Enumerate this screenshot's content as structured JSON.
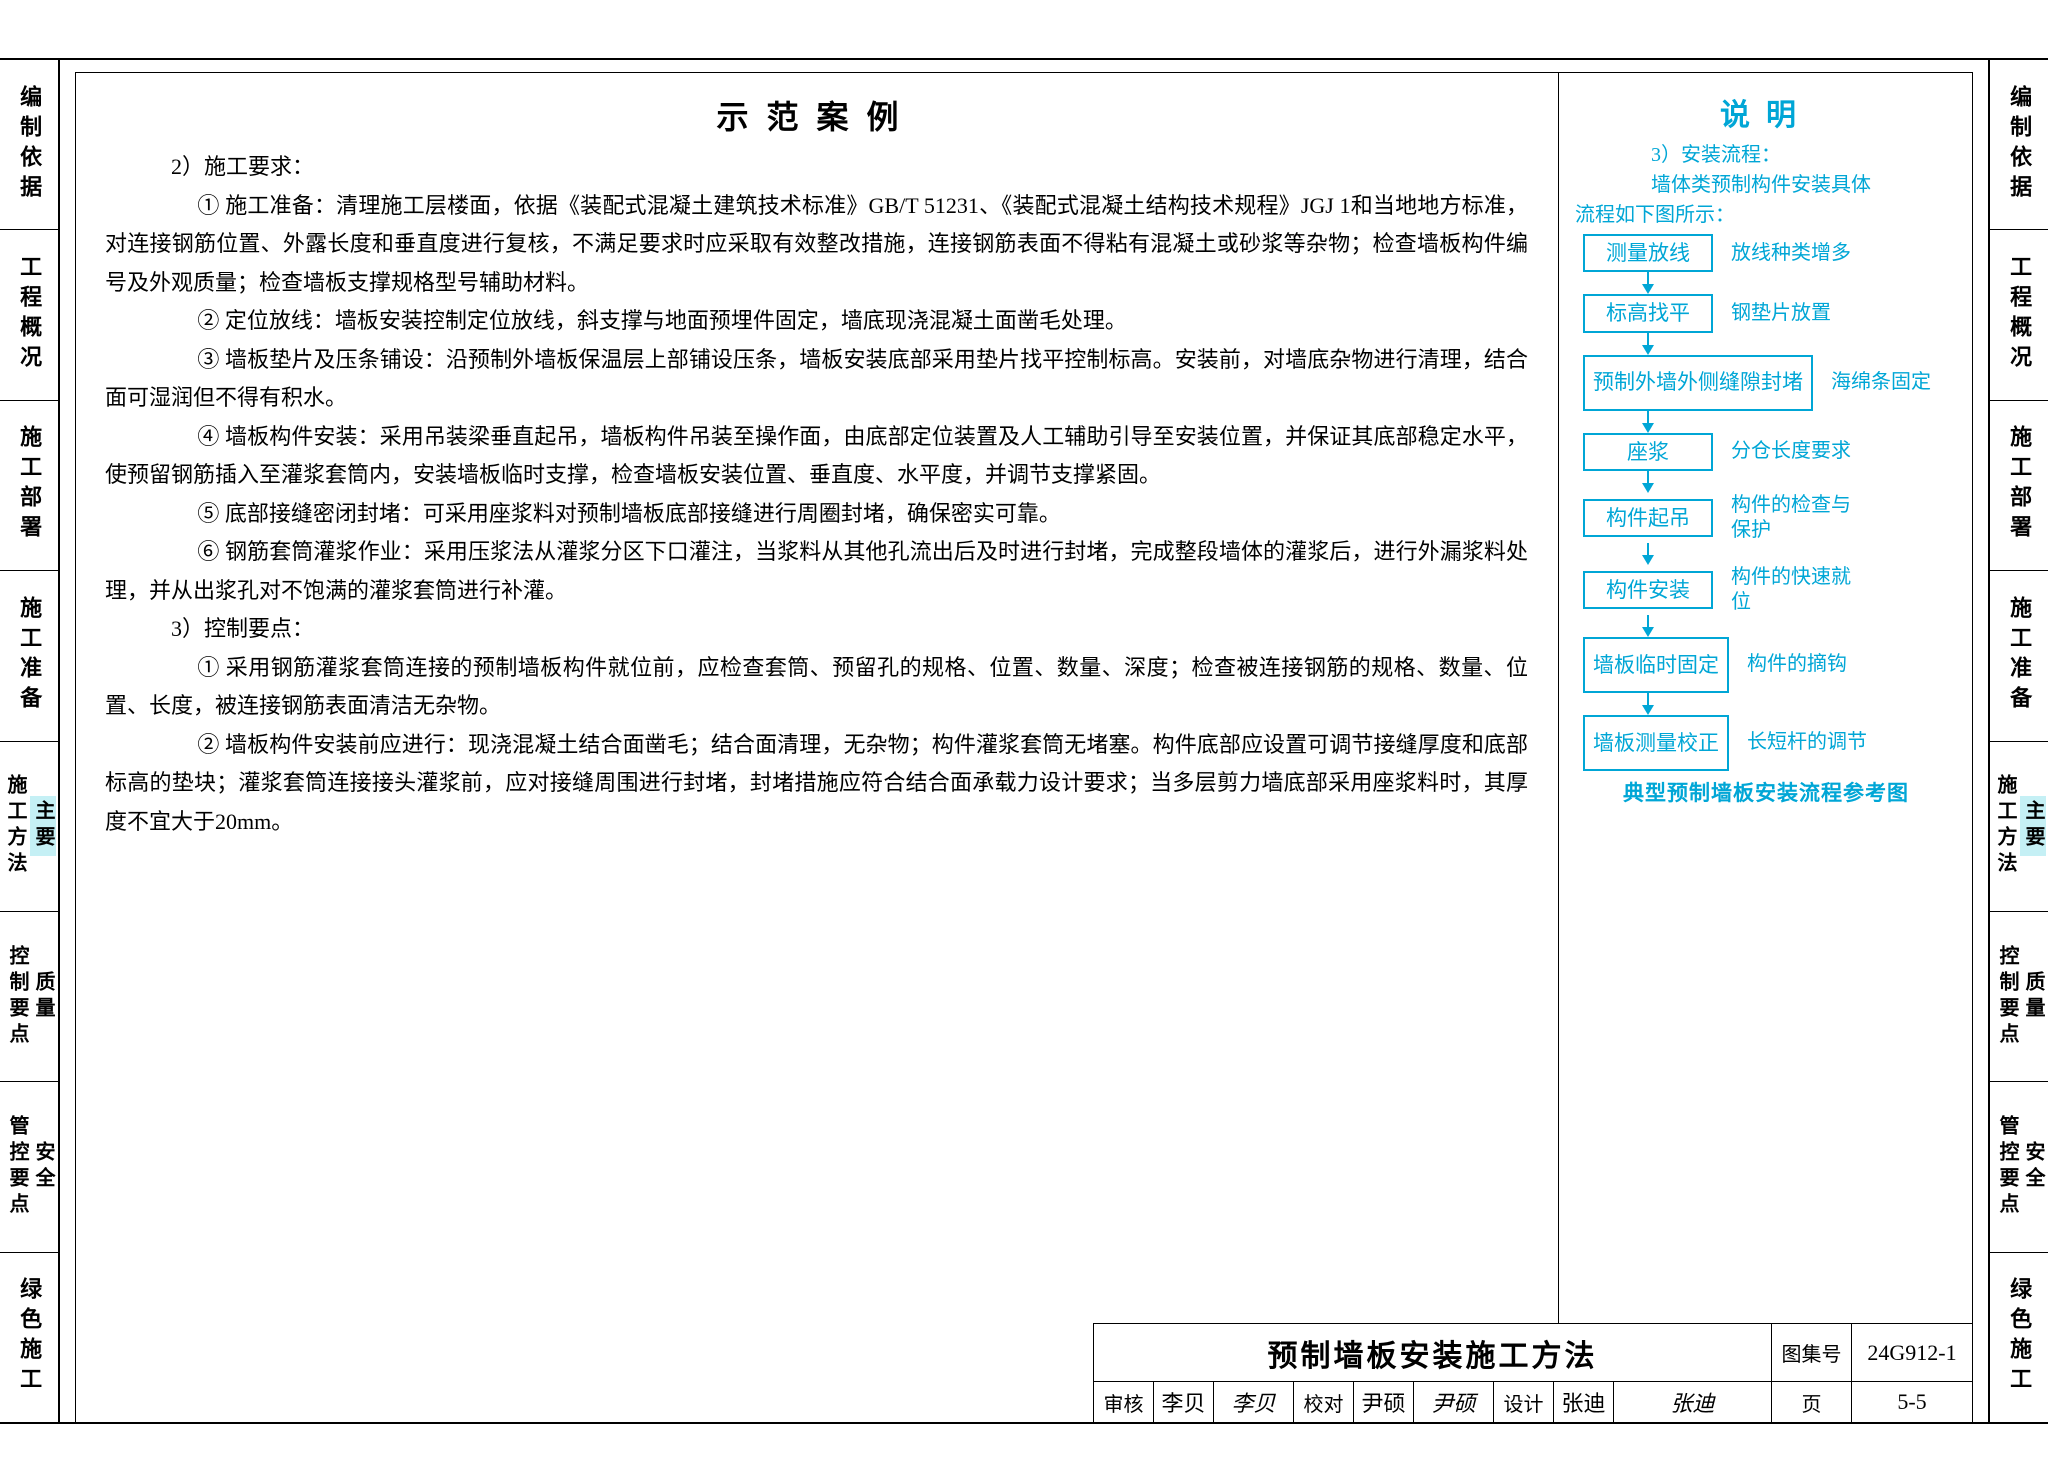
{
  "side_tabs": [
    {
      "label": "编制依据",
      "active": false
    },
    {
      "label": "工程概况",
      "active": false
    },
    {
      "label": "施工部署",
      "active": false
    },
    {
      "label": "施工准备",
      "active": false
    },
    {
      "label": "施工方法",
      "sub": "主要",
      "active": true
    },
    {
      "label": "控制要点",
      "sub": "质量",
      "active": false
    },
    {
      "label": "管控要点",
      "sub": "安全",
      "active": false
    },
    {
      "label": "绿色施工",
      "active": false
    }
  ],
  "main_title": "示范案例",
  "right_title": "说明",
  "section2_head": "2）施工要求：",
  "paragraphs": [
    "① 施工准备：清理施工层楼面，依据《装配式混凝土建筑技术标准》GB/T 51231、《装配式混凝土结构技术规程》JGJ 1和当地地方标准，对连接钢筋位置、外露长度和垂直度进行复核，不满足要求时应采取有效整改措施，连接钢筋表面不得粘有混凝土或砂浆等杂物；检查墙板构件编号及外观质量；检查墙板支撑规格型号辅助材料。",
    "② 定位放线：墙板安装控制定位放线，斜支撑与地面预埋件固定，墙底现浇混凝土面凿毛处理。",
    "③ 墙板垫片及压条铺设：沿预制外墙板保温层上部铺设压条，墙板安装底部采用垫片找平控制标高。安装前，对墙底杂物进行清理，结合面可湿润但不得有积水。",
    "④ 墙板构件安装：采用吊装梁垂直起吊，墙板构件吊装至操作面，由底部定位装置及人工辅助引导至安装位置，并保证其底部稳定水平，使预留钢筋插入至灌浆套筒内，安装墙板临时支撑，检查墙板安装位置、垂直度、水平度，并调节支撑紧固。",
    "⑤ 底部接缝密闭封堵：可采用座浆料对预制墙板底部接缝进行周圈封堵，确保密实可靠。",
    "⑥ 钢筋套筒灌浆作业：采用压浆法从灌浆分区下口灌注，当浆料从其他孔流出后及时进行封堵，完成整段墙体的灌浆后，进行外漏浆料处理，并从出浆孔对不饱满的灌浆套筒进行补灌。"
  ],
  "section3_head": "3）控制要点：",
  "control_points": [
    "① 采用钢筋灌浆套筒连接的预制墙板构件就位前，应检查套筒、预留孔的规格、位置、数量、深度；检查被连接钢筋的规格、数量、位置、长度，被连接钢筋表面清洁无杂物。",
    "② 墙板构件安装前应进行：现浇混凝土结合面凿毛；结合面清理，无杂物；构件灌浆套筒无堵塞。构件底部应设置可调节接缝厚度和底部标高的垫块；灌浆套筒连接接头灌浆前，应对接缝周围进行封堵，封堵措施应符合结合面承载力设计要求；当多层剪力墙底部采用座浆料时，其厚度不宜大于20mm。"
  ],
  "right_intro_line1": "3）安装流程：",
  "right_intro_line2": "墙体类预制构件安装具体",
  "right_intro_line3": "流程如下图所示：",
  "flow": [
    {
      "box": "测量放线",
      "label": "放线种类增多"
    },
    {
      "box": "标高找平",
      "label": "钢垫片放置"
    },
    {
      "box": "预制外墙外\n侧缝隙封堵",
      "label": "海绵条固定"
    },
    {
      "box": "座浆",
      "label": "分仓长度要求"
    },
    {
      "box": "构件起吊",
      "label": "构件的检查与\n保护"
    },
    {
      "box": "构件安装",
      "label": "构件的快速就\n位"
    },
    {
      "box": "墙板\n临时固定",
      "label": "构件的摘钩"
    },
    {
      "box": "墙板\n测量校正",
      "label": "长短杆的调节"
    }
  ],
  "flow_caption": "典型预制墙板安装流程参考图",
  "title_block": {
    "title": "预制墙板安装施工方法",
    "tuji_label": "图集号",
    "tuji_value": "24G912-1",
    "shenhe_label": "审核",
    "shenhe_name": "李贝",
    "shenhe_sig": "李贝",
    "jiaodui_label": "校对",
    "jiaodui_name": "尹硕",
    "jiaodui_sig": "尹硕",
    "sheji_label": "设计",
    "sheji_name": "张迪",
    "sheji_sig": "张迪",
    "page_label": "页",
    "page_value": "5-5"
  },
  "colors": {
    "accent": "#00a6d6",
    "active_bg": "#c5f0f5",
    "text": "#000000",
    "border": "#000000",
    "background": "#ffffff"
  }
}
